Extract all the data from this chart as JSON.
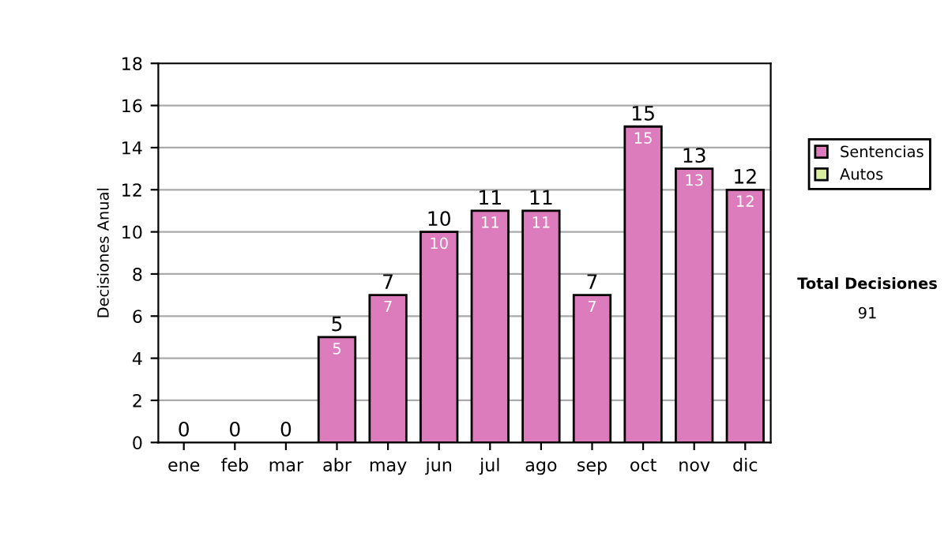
{
  "chart_data": {
    "type": "bar",
    "stacked": true,
    "ylabel": "Decisiones Anual",
    "categories": [
      "ene",
      "feb",
      "mar",
      "abr",
      "may",
      "jun",
      "jul",
      "ago",
      "sep",
      "oct",
      "nov",
      "dic"
    ],
    "series": [
      {
        "name": "Sentencias",
        "color": "#dc7cbc",
        "values": [
          0,
          0,
          0,
          5,
          7,
          10,
          11,
          11,
          7,
          15,
          13,
          12
        ],
        "value_labels": [
          null,
          null,
          null,
          "5",
          "7",
          "10",
          "11",
          "11",
          "7",
          "15",
          "13",
          "12"
        ]
      },
      {
        "name": "Autos",
        "color": "#d9eea0",
        "values": [
          0,
          0,
          0,
          0,
          0,
          0,
          0,
          0,
          0,
          0,
          0,
          0
        ]
      }
    ],
    "totals": [
      "0",
      "0",
      "0",
      "5",
      "7",
      "10",
      "11",
      "11",
      "7",
      "15",
      "13",
      "12"
    ],
    "ylim": [
      0,
      18
    ],
    "yticks": [
      0,
      2,
      4,
      6,
      8,
      10,
      12,
      14,
      16,
      18
    ],
    "grid": "y",
    "legend": "right",
    "annotations": [
      "Total Decisiones",
      "91"
    ]
  }
}
